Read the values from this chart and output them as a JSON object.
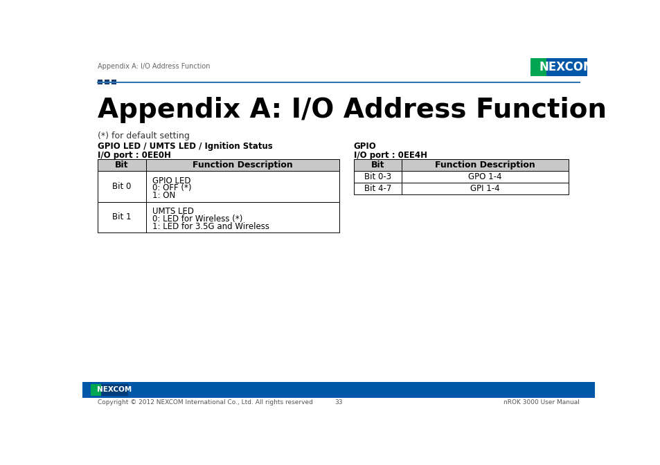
{
  "title": "Appendix A: I/O Address Function",
  "header_text": "Appendix A: I/O Address Function",
  "default_note": "(*) for default setting",
  "table1_title1": "GPIO LED / UMTS LED / Ignition Status",
  "table1_title2": "I/O port : 0EE0H",
  "table1_headers": [
    "Bit",
    "Function Description"
  ],
  "table1_row1_bit": "Bit 0",
  "table1_row1_lines": [
    "GPIO LED",
    "0: OFF (*)",
    "1: ON"
  ],
  "table1_row2_bit": "Bit 1",
  "table1_row2_lines": [
    "UMTS LED",
    "0: LED for Wireless (*)",
    "1: LED for 3.5G and Wireless"
  ],
  "table2_title1": "GPIO",
  "table2_title2": "I/O port : 0EE4H",
  "table2_headers": [
    "Bit",
    "Function Description"
  ],
  "table2_rows": [
    [
      "Bit 0-3",
      "GPO 1-4"
    ],
    [
      "Bit 4-7",
      "GPI 1-4"
    ]
  ],
  "nexcom_green": "#00a651",
  "nexcom_blue": "#0057a8",
  "nexcom_dark_blue": "#003d7a",
  "sep_dark": "#1a3a6b",
  "sep_light": "#2e75b6",
  "table_header_bg": "#c8c8c8",
  "table_row_bg": "#ffffff",
  "table_border": "#000000",
  "footer_bg": "#0057a8",
  "footer_copy": "Copyright © 2012 NEXCOM International Co., Ltd. All rights reserved",
  "footer_page": "33",
  "footer_right": "nROK 3000 User Manual"
}
